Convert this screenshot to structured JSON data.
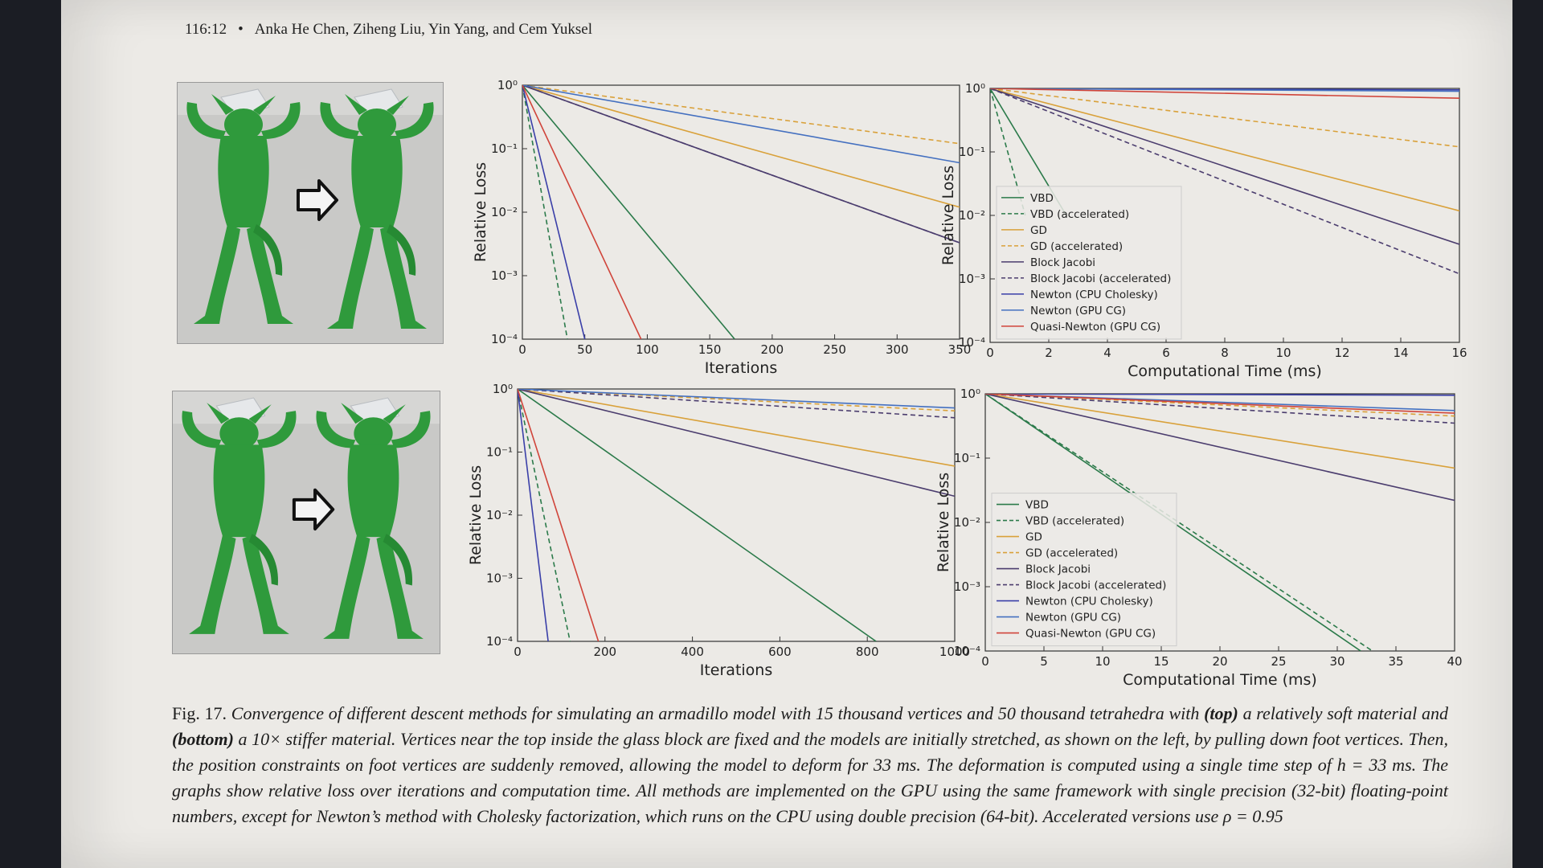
{
  "header": {
    "page_number": "116:12",
    "authors": "Anka He Chen, Ziheng Liu, Yin Yang, and Cem Yuksel"
  },
  "colors": {
    "page": "#eceae6",
    "model": "#2f9a3c",
    "VBD": "#2b7a4a",
    "GD": "#d9a13a",
    "Block Jacobi": "#4b3d6e",
    "Newton (CPU Cholesky)": "#3a3fa8",
    "Newton (GPU CG)": "#4470c0",
    "Quasi-Newton (GPU CG)": "#d0443a"
  },
  "photos": [
    {
      "arrow": "right-arrow-icon"
    },
    {
      "arrow": "right-arrow-icon"
    }
  ],
  "chart_data": [
    {
      "type": "line",
      "yscale": "log",
      "xlabel": "Iterations",
      "ylabel": "Relative Loss",
      "xlim": [
        0,
        350
      ],
      "ylim_exp": [
        -4,
        0
      ],
      "xticks": [
        "0",
        "50",
        "100",
        "150",
        "200",
        "250",
        "300",
        "350"
      ],
      "yticks": [
        "10⁰",
        "10⁻¹",
        "10⁻²",
        "10⁻³",
        "10⁻⁴"
      ],
      "legend": "none",
      "series": [
        {
          "name": "VBD",
          "style": "solid",
          "x": [
            0,
            170
          ],
          "y": [
            1,
            0.0001
          ]
        },
        {
          "name": "VBD (accelerated)",
          "style": "dashed",
          "x": [
            0,
            36
          ],
          "y": [
            1,
            0.0001
          ]
        },
        {
          "name": "GD",
          "style": "solid",
          "x": [
            0,
            350
          ],
          "y": [
            1,
            0.012
          ]
        },
        {
          "name": "GD (accelerated)",
          "style": "dashed",
          "x": [
            0,
            350
          ],
          "y": [
            1,
            0.12
          ]
        },
        {
          "name": "Block Jacobi",
          "style": "solid",
          "x": [
            0,
            350
          ],
          "y": [
            1,
            0.0033
          ]
        },
        {
          "name": "Block Jacobi (accelerated)",
          "style": "dashed",
          "x": [
            0,
            350
          ],
          "y": [
            1,
            0.0033
          ]
        },
        {
          "name": "Newton (CPU Cholesky)",
          "style": "solid",
          "x": [
            0,
            50
          ],
          "y": [
            1,
            0.0001
          ]
        },
        {
          "name": "Newton (GPU CG)",
          "style": "solid",
          "x": [
            0,
            350
          ],
          "y": [
            1,
            0.06
          ]
        },
        {
          "name": "Quasi-Newton (GPU CG)",
          "style": "solid",
          "x": [
            0,
            95
          ],
          "y": [
            1,
            0.0001
          ]
        }
      ]
    },
    {
      "type": "line",
      "yscale": "log",
      "xlabel": "Computational Time (ms)",
      "ylabel": "Relative Loss",
      "xlim": [
        0,
        16
      ],
      "ylim_exp": [
        -4,
        0
      ],
      "xticks": [
        "0",
        "2",
        "4",
        "6",
        "8",
        "10",
        "12",
        "14",
        "16"
      ],
      "yticks": [
        "10⁰",
        "10⁻¹",
        "10⁻²",
        "10⁻³",
        "10⁻⁴"
      ],
      "legend": "center-left",
      "series": [
        {
          "name": "VBD",
          "style": "solid",
          "x": [
            0,
            2.6
          ],
          "y": [
            1,
            0.01
          ]
        },
        {
          "name": "VBD (accelerated)",
          "style": "dashed",
          "x": [
            0,
            1.2
          ],
          "y": [
            1,
            0.01
          ]
        },
        {
          "name": "GD",
          "style": "solid",
          "x": [
            0,
            16
          ],
          "y": [
            1,
            0.0118
          ]
        },
        {
          "name": "GD (accelerated)",
          "style": "dashed",
          "x": [
            0,
            16
          ],
          "y": [
            1,
            0.12
          ]
        },
        {
          "name": "Block Jacobi",
          "style": "solid",
          "x": [
            0,
            16
          ],
          "y": [
            1,
            0.0035
          ]
        },
        {
          "name": "Block Jacobi (accelerated)",
          "style": "dashed",
          "x": [
            0,
            16
          ],
          "y": [
            1,
            0.0012
          ]
        },
        {
          "name": "Newton (CPU Cholesky)",
          "style": "solid",
          "x": [
            0,
            16
          ],
          "y": [
            1,
            0.95
          ]
        },
        {
          "name": "Newton (GPU CG)",
          "style": "solid",
          "x": [
            0,
            16
          ],
          "y": [
            1,
            0.9
          ]
        },
        {
          "name": "Quasi-Newton (GPU CG)",
          "style": "solid",
          "x": [
            0,
            16
          ],
          "y": [
            1,
            0.7
          ]
        }
      ]
    },
    {
      "type": "line",
      "yscale": "log",
      "xlabel": "Iterations",
      "ylabel": "Relative Loss",
      "xlim": [
        0,
        1000
      ],
      "ylim_exp": [
        -4,
        0
      ],
      "xticks": [
        "0",
        "200",
        "400",
        "600",
        "800",
        "1000"
      ],
      "yticks": [
        "10⁰",
        "10⁻¹",
        "10⁻²",
        "10⁻³",
        "10⁻⁴"
      ],
      "legend": "none",
      "series": [
        {
          "name": "VBD",
          "style": "solid",
          "x": [
            0,
            820
          ],
          "y": [
            1,
            0.0001
          ]
        },
        {
          "name": "VBD (accelerated)",
          "style": "dashed",
          "x": [
            0,
            120
          ],
          "y": [
            1,
            0.0001
          ]
        },
        {
          "name": "GD",
          "style": "solid",
          "x": [
            0,
            1000
          ],
          "y": [
            1,
            0.06
          ]
        },
        {
          "name": "GD (accelerated)",
          "style": "dashed",
          "x": [
            0,
            1000
          ],
          "y": [
            1,
            0.45
          ]
        },
        {
          "name": "Block Jacobi",
          "style": "solid",
          "x": [
            0,
            1000
          ],
          "y": [
            1,
            0.02
          ]
        },
        {
          "name": "Block Jacobi (accelerated)",
          "style": "dashed",
          "x": [
            0,
            1000
          ],
          "y": [
            1,
            0.35
          ]
        },
        {
          "name": "Newton (CPU Cholesky)",
          "style": "solid",
          "x": [
            0,
            70
          ],
          "y": [
            1,
            0.0001
          ]
        },
        {
          "name": "Newton (GPU CG)",
          "style": "solid",
          "x": [
            0,
            1000
          ],
          "y": [
            1,
            0.5
          ]
        },
        {
          "name": "Quasi-Newton (GPU CG)",
          "style": "solid",
          "x": [
            0,
            185
          ],
          "y": [
            1,
            0.0001
          ]
        }
      ]
    },
    {
      "type": "line",
      "yscale": "log",
      "xlabel": "Computational Time (ms)",
      "ylabel": "Relative Loss",
      "xlim": [
        0,
        40
      ],
      "ylim_exp": [
        -4,
        0
      ],
      "xticks": [
        "0",
        "5",
        "10",
        "15",
        "20",
        "25",
        "30",
        "35",
        "40"
      ],
      "yticks": [
        "10⁰",
        "10⁻¹",
        "10⁻²",
        "10⁻³",
        "10⁻⁴"
      ],
      "legend": "center-left",
      "series": [
        {
          "name": "VBD",
          "style": "solid",
          "x": [
            0,
            32
          ],
          "y": [
            1,
            0.0001
          ]
        },
        {
          "name": "VBD (accelerated)",
          "style": "dashed",
          "x": [
            0,
            33
          ],
          "y": [
            1,
            0.0001
          ]
        },
        {
          "name": "GD",
          "style": "solid",
          "x": [
            0,
            40
          ],
          "y": [
            1,
            0.07
          ]
        },
        {
          "name": "GD (accelerated)",
          "style": "dashed",
          "x": [
            0,
            40
          ],
          "y": [
            1,
            0.45
          ]
        },
        {
          "name": "Block Jacobi",
          "style": "solid",
          "x": [
            0,
            40
          ],
          "y": [
            1,
            0.022
          ]
        },
        {
          "name": "Block Jacobi (accelerated)",
          "style": "dashed",
          "x": [
            0,
            40
          ],
          "y": [
            1,
            0.35
          ]
        },
        {
          "name": "Newton (CPU Cholesky)",
          "style": "solid",
          "x": [
            0,
            40
          ],
          "y": [
            1,
            0.95
          ]
        },
        {
          "name": "Newton (GPU CG)",
          "style": "solid",
          "x": [
            0,
            40
          ],
          "y": [
            1,
            0.55
          ]
        },
        {
          "name": "Quasi-Newton (GPU CG)",
          "style": "solid",
          "x": [
            0,
            40
          ],
          "y": [
            1,
            0.5
          ]
        }
      ]
    }
  ],
  "caption": {
    "label": "Fig. 17.",
    "t1": "Convergence of different descent methods for simulating an armadillo model with 15 thousand vertices and 50 thousand tetrahedra with ",
    "b1": "(top)",
    "t2": " a relatively soft material and ",
    "b2": "(bottom)",
    "t3": " a 10× stiffer material. Vertices near the top inside the glass block are fixed and the models are initially stretched, as shown on the left, by pulling down foot vertices. Then, the position constraints on foot vertices are suddenly removed, allowing the model to deform for 33 ms. The deformation is computed using a single time step of h = 33 ms. The graphs show relative loss over iterations and computation time. All methods are implemented on the GPU using the same framework with single precision (32-bit) floating-point numbers, except for Newton’s method with Cholesky factorization, which runs on the CPU using double precision (64-bit). Accelerated versions use ρ = 0.95"
  }
}
